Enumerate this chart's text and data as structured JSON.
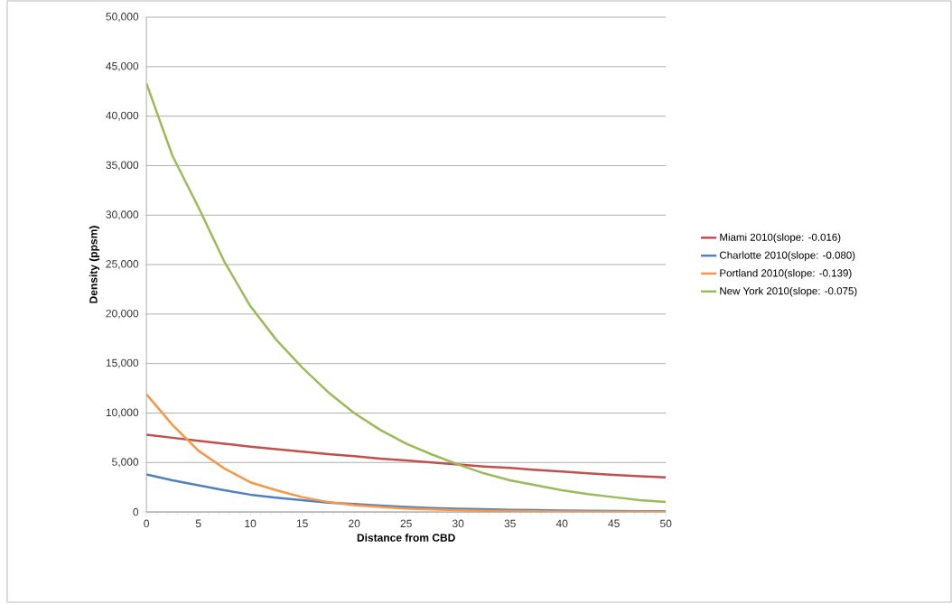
{
  "chart_data": {
    "type": "line",
    "xlabel": "Distance from CBD",
    "ylabel": "Density (ppsm)",
    "xlim": [
      0,
      50
    ],
    "xticks": [
      0,
      5,
      10,
      15,
      20,
      25,
      30,
      35,
      40,
      45,
      50
    ],
    "ylim": [
      0,
      50000
    ],
    "yticks": [
      {
        "value": 0,
        "label": "0"
      },
      {
        "value": 5000,
        "label": "5,000"
      },
      {
        "value": 10000,
        "label": "10,000"
      },
      {
        "value": 15000,
        "label": "15,000"
      },
      {
        "value": 20000,
        "label": "20,000"
      },
      {
        "value": 25000,
        "label": "25,000"
      },
      {
        "value": 30000,
        "label": "30,000"
      },
      {
        "value": 35000,
        "label": "35,000"
      },
      {
        "value": 40000,
        "label": "40,000"
      },
      {
        "value": 45000,
        "label": "45,000"
      },
      {
        "value": 50000,
        "label": "50,000"
      }
    ],
    "grid": "y",
    "legend": "right",
    "marker": "none",
    "line_style": "solid",
    "x": [
      0,
      2.5,
      5,
      7.5,
      10,
      12.5,
      15,
      17.5,
      20,
      22.5,
      25,
      27.5,
      30,
      32.5,
      35,
      37.5,
      40,
      42.5,
      45,
      47.5,
      50
    ],
    "series": [
      {
        "name": "Miami 2010(slope: -0.016)",
        "color": "#c0504d",
        "values": [
          7800,
          7500,
          7200,
          6900,
          6600,
          6350,
          6100,
          5850,
          5650,
          5400,
          5200,
          5000,
          4800,
          4600,
          4450,
          4250,
          4100,
          3900,
          3750,
          3600,
          3500
        ]
      },
      {
        "name": "Charlotte 2010(slope: -0.080)",
        "color": "#4f81bd",
        "values": [
          3800,
          3200,
          2700,
          2200,
          1750,
          1450,
          1200,
          950,
          800,
          650,
          500,
          400,
          330,
          270,
          220,
          180,
          150,
          120,
          100,
          85,
          70
        ]
      },
      {
        "name": "Portland 2010(slope: -0.139)",
        "color": "#f79646",
        "values": [
          11900,
          8800,
          6200,
          4400,
          3000,
          2200,
          1500,
          1000,
          700,
          500,
          350,
          250,
          180,
          130,
          90,
          70,
          50,
          40,
          30,
          25,
          20
        ]
      },
      {
        "name": "New York 2010(slope: -0.075)",
        "color": "#9bbb59",
        "values": [
          43300,
          36000,
          30800,
          25300,
          20800,
          17400,
          14600,
          12100,
          10000,
          8300,
          6900,
          5800,
          4800,
          3900,
          3200,
          2700,
          2200,
          1800,
          1500,
          1200,
          1000
        ]
      }
    ]
  }
}
